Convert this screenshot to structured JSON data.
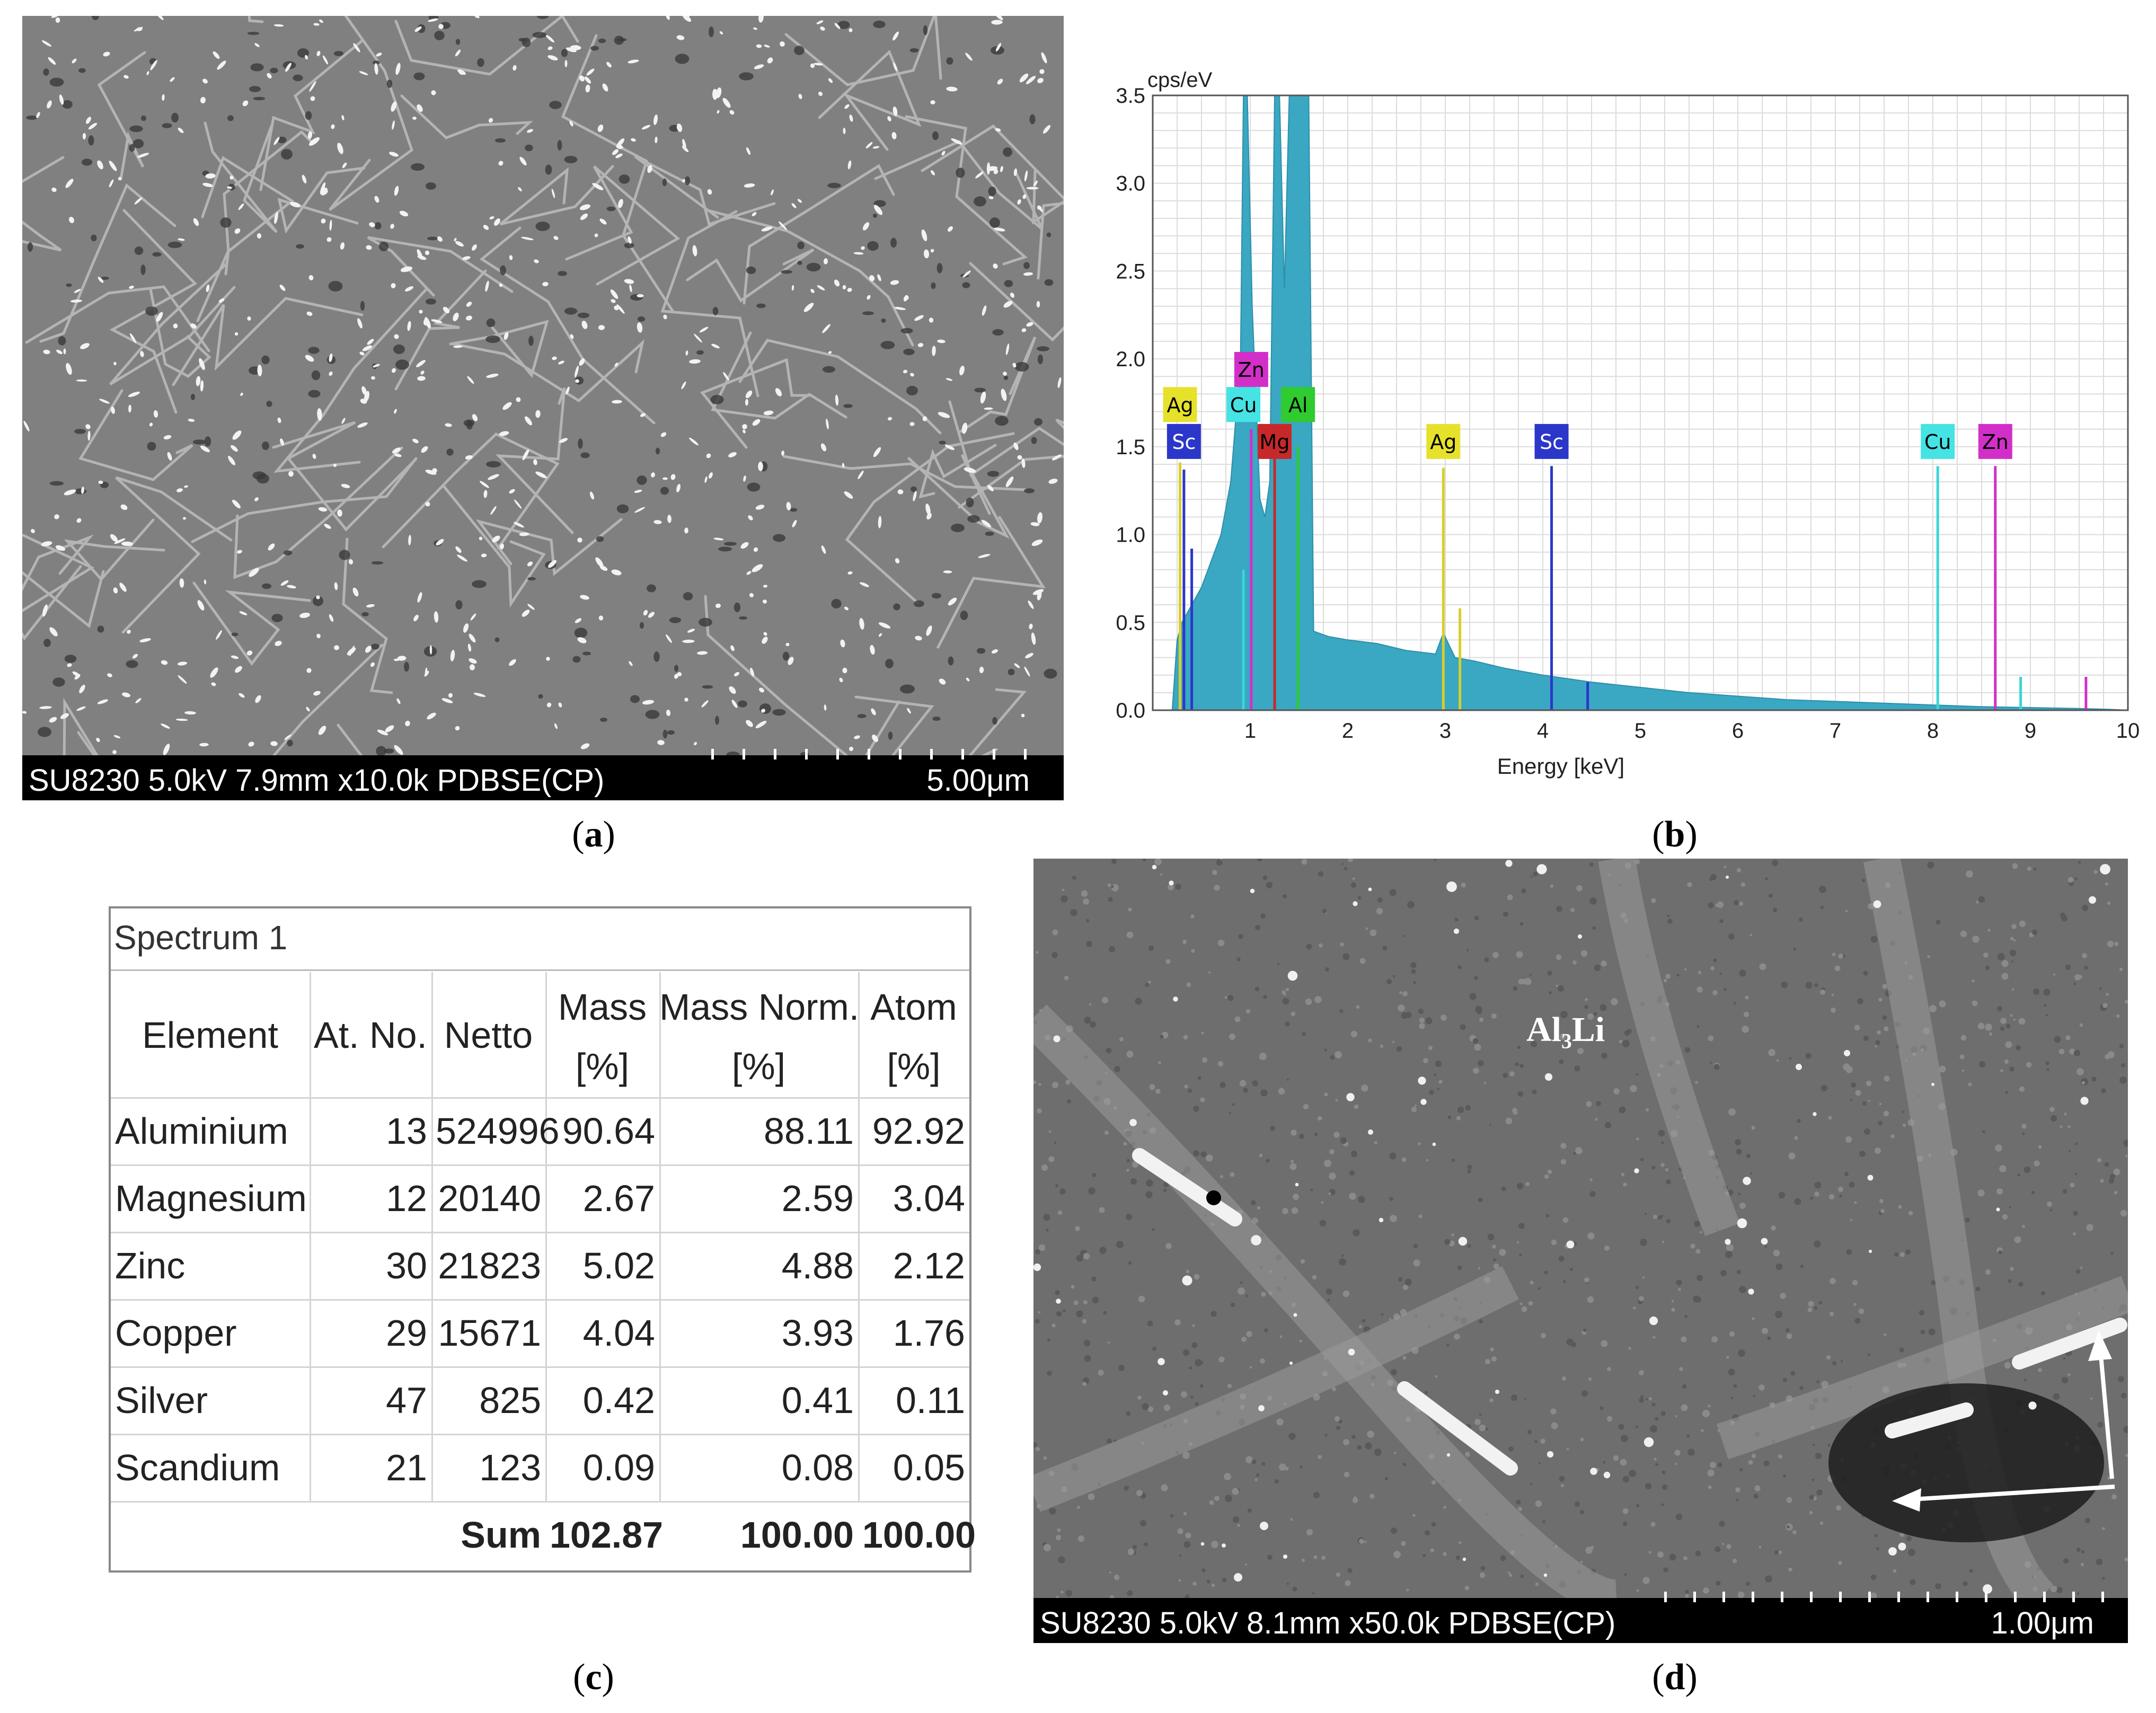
{
  "panel_a": {
    "label_open": "(",
    "label_letter": "a",
    "label_close": ")",
    "info_text": "SU8230 5.0kV 7.9mm x10.0k PDBSE(CP)",
    "scale_text": "5.00μm"
  },
  "panel_b": {
    "label_open": "(",
    "label_letter": "b",
    "label_close": ")"
  },
  "panel_c": {
    "label_open": "(",
    "label_letter": "c",
    "label_close": ")",
    "title": "Spectrum 1",
    "headers": [
      [
        "Element"
      ],
      [
        "At. No."
      ],
      [
        "Netto"
      ],
      [
        "Mass",
        "[%]"
      ],
      [
        "Mass Norm.",
        "[%]"
      ],
      [
        "Atom",
        "[%]"
      ]
    ],
    "rows": [
      [
        "Aluminium",
        "13",
        "524996",
        "90.64",
        "88.11",
        "92.92"
      ],
      [
        "Magnesium",
        "12",
        "20140",
        "2.67",
        "2.59",
        "3.04"
      ],
      [
        "Zinc",
        "30",
        "21823",
        "5.02",
        "4.88",
        "2.12"
      ],
      [
        "Copper",
        "29",
        "15671",
        "4.04",
        "3.93",
        "1.76"
      ],
      [
        "Silver",
        "47",
        "825",
        "0.42",
        "0.41",
        "0.11"
      ],
      [
        "Scandium",
        "21",
        "123",
        "0.09",
        "0.08",
        "0.05"
      ]
    ],
    "sum_row": [
      "",
      "",
      "Sum",
      "102.87",
      "100.00",
      "100.00"
    ]
  },
  "panel_d": {
    "label_open": "(",
    "label_letter": "d",
    "label_close": ")",
    "info_text": "SU8230 5.0kV 8.1mm x50.0k PDBSE(CP)",
    "scale_text": "1.00μm",
    "annotation": "Al₃Li"
  },
  "chart_data": {
    "type": "area",
    "ylabel": "cps/eV",
    "xlabel": "Energy [keV]",
    "xlim": [
      0,
      10
    ],
    "ylim": [
      0,
      3.5
    ],
    "xticks": [
      "1",
      "2",
      "3",
      "4",
      "5",
      "6",
      "7",
      "8",
      "9",
      "10"
    ],
    "yticks": [
      "0.0",
      "0.5",
      "1.0",
      "1.5",
      "2.0",
      "2.5",
      "3.0",
      "3.5"
    ],
    "grid": true,
    "fill_color": "#3aa7c3",
    "spectrum": {
      "x": [
        0.0,
        0.2,
        0.25,
        0.3,
        0.4,
        0.5,
        0.6,
        0.7,
        0.8,
        0.9,
        0.93,
        0.97,
        1.02,
        1.1,
        1.15,
        1.2,
        1.25,
        1.3,
        1.35,
        1.4,
        1.45,
        1.5,
        1.55,
        1.6,
        1.65,
        1.8,
        2.0,
        2.3,
        2.6,
        2.9,
        2.98,
        3.1,
        3.3,
        3.6,
        4.0,
        4.5,
        5.0,
        5.5,
        6.0,
        6.5,
        7.0,
        7.5,
        8.0,
        8.5,
        9.0,
        9.5,
        9.8,
        10.0
      ],
      "y": [
        0.0,
        0.0,
        0.4,
        0.5,
        0.6,
        0.7,
        0.85,
        1.0,
        1.3,
        2.0,
        3.5,
        3.5,
        2.3,
        1.2,
        1.1,
        1.3,
        3.5,
        3.5,
        2.4,
        3.5,
        3.5,
        3.5,
        3.5,
        3.5,
        0.45,
        0.42,
        0.4,
        0.38,
        0.34,
        0.32,
        0.44,
        0.3,
        0.28,
        0.24,
        0.2,
        0.16,
        0.13,
        0.1,
        0.08,
        0.06,
        0.05,
        0.04,
        0.03,
        0.02,
        0.015,
        0.01,
        0.005,
        0.0
      ]
    },
    "lines": [
      {
        "element": "Ag",
        "x": 0.28,
        "height": 1.41,
        "color": "#d8cf2a"
      },
      {
        "element": "Sc",
        "x": 0.32,
        "height": 1.37,
        "color": "#2b37c9"
      },
      {
        "element": "Sc",
        "x": 0.4,
        "height": 0.92,
        "color": "#2b37c9"
      },
      {
        "element": "Cu",
        "x": 0.93,
        "height": 0.8,
        "color": "#3ad6d6"
      },
      {
        "element": "Zn",
        "x": 1.01,
        "height": 1.6,
        "color": "#d22fc9"
      },
      {
        "element": "Mg",
        "x": 1.25,
        "height": 1.47,
        "color": "#c7282a"
      },
      {
        "element": "Al",
        "x": 1.49,
        "height": 1.5,
        "color": "#2fcb2f"
      },
      {
        "element": "Ag",
        "x": 2.98,
        "height": 1.38,
        "color": "#d8cf2a"
      },
      {
        "element": "Ag",
        "x": 3.15,
        "height": 0.58,
        "color": "#d8cf2a"
      },
      {
        "element": "Sc",
        "x": 4.09,
        "height": 1.39,
        "color": "#2b37c9"
      },
      {
        "element": "Sc",
        "x": 4.46,
        "height": 0.16,
        "color": "#2b37c9"
      },
      {
        "element": "Cu",
        "x": 8.05,
        "height": 1.39,
        "color": "#3ad6d6"
      },
      {
        "element": "Cu",
        "x": 8.9,
        "height": 0.19,
        "color": "#3ad6d6"
      },
      {
        "element": "Zn",
        "x": 8.64,
        "height": 1.39,
        "color": "#d22fc9"
      },
      {
        "element": "Zn",
        "x": 9.57,
        "height": 0.19,
        "color": "#d22fc9"
      }
    ],
    "labels": [
      {
        "text": "Zn",
        "x": 1.01,
        "y": 1.94,
        "color": "#d22fc9",
        "text_color": "#000000"
      },
      {
        "text": "Ag",
        "x": 0.28,
        "y": 1.74,
        "color": "#e6e12b",
        "text_color": "#000000"
      },
      {
        "text": "Cu",
        "x": 0.93,
        "y": 1.74,
        "color": "#45e3e3",
        "text_color": "#000000"
      },
      {
        "text": "Al",
        "x": 1.49,
        "y": 1.74,
        "color": "#2fcb2f",
        "text_color": "#000000"
      },
      {
        "text": "Sc",
        "x": 0.32,
        "y": 1.53,
        "color": "#2b37c9",
        "text_color": "#ffffff"
      },
      {
        "text": "Mg",
        "x": 1.25,
        "y": 1.53,
        "color": "#c7282a",
        "text_color": "#000000"
      },
      {
        "text": "Ag",
        "x": 2.98,
        "y": 1.53,
        "color": "#e6e12b",
        "text_color": "#000000"
      },
      {
        "text": "Sc",
        "x": 4.09,
        "y": 1.53,
        "color": "#2b37c9",
        "text_color": "#ffffff"
      },
      {
        "text": "Cu",
        "x": 8.05,
        "y": 1.53,
        "color": "#45e3e3",
        "text_color": "#000000"
      },
      {
        "text": "Zn",
        "x": 8.64,
        "y": 1.53,
        "color": "#d22fc9",
        "text_color": "#000000"
      }
    ]
  }
}
